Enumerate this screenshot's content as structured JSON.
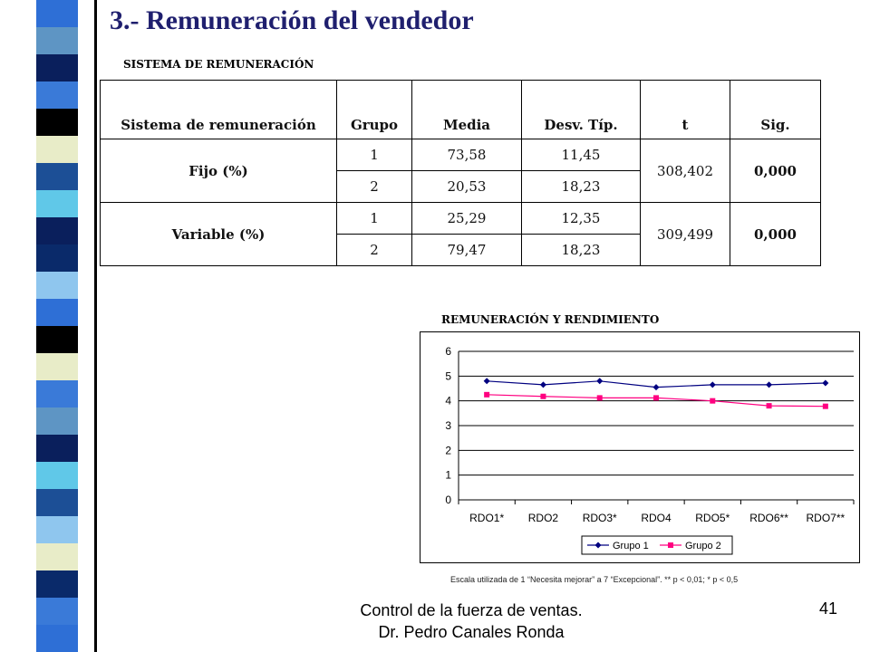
{
  "slide": {
    "title": "3.- Remuneración del vendedor",
    "table_caption": "SISTEMA DE REMUNERACIÓN",
    "chart_caption": "REMUNERACIÓN Y RENDIMIENTO",
    "chart_note": "Escala utilizada de 1 “Necesita mejorar” a 7 “Excepcional”. ** p < 0,01; * p < 0,5",
    "footer_line1": "Control de la fuerza de ventas.",
    "footer_line2": "Dr. Pedro Canales Ronda",
    "page_number": "41"
  },
  "table": {
    "headers": [
      "Sistema de remuneración",
      "Grupo",
      "Media",
      "Desv. Típ.",
      "t",
      "Sig."
    ],
    "rows": [
      {
        "label": "Fijo (%)",
        "t": "308,402",
        "sig": "0,000",
        "groups": [
          {
            "grupo": "1",
            "media": "73,58",
            "desv": "11,45"
          },
          {
            "grupo": "2",
            "media": "20,53",
            "desv": "18,23"
          }
        ]
      },
      {
        "label": "Variable (%)",
        "t": "309,499",
        "sig": "0,000",
        "groups": [
          {
            "grupo": "1",
            "media": "25,29",
            "desv": "12,35"
          },
          {
            "grupo": "2",
            "media": "79,47",
            "desv": "18,23"
          }
        ]
      }
    ]
  },
  "chart_data": {
    "type": "line",
    "title": "",
    "categories": [
      "RDO1*",
      "RDO2",
      "RDO3*",
      "RDO4",
      "RDO5*",
      "RDO6**",
      "RDO7**"
    ],
    "ylim": [
      0,
      6
    ],
    "yticks": [
      "0",
      "1",
      "2",
      "3",
      "4",
      "5",
      "6"
    ],
    "grid": true,
    "legend": "bottom",
    "series": [
      {
        "name": "Grupo 1",
        "color": "#000080",
        "marker": "diamond",
        "values": [
          4.8,
          4.65,
          4.8,
          4.55,
          4.65,
          4.65,
          4.72
        ]
      },
      {
        "name": "Grupo 2",
        "color": "#ff0080",
        "marker": "square",
        "values": [
          4.25,
          4.18,
          4.12,
          4.12,
          4.0,
          3.8,
          3.78
        ]
      }
    ]
  },
  "colors": {
    "title": "#1f1f6e",
    "stripes": [
      "#2e6fd6",
      "#5e95c4",
      "#0a1f5c",
      "#3a7ad8",
      "#000000",
      "#e8ecc8",
      "#1c4f96",
      "#60c8e8",
      "#0a2a6a",
      "#8fc6ee"
    ]
  }
}
